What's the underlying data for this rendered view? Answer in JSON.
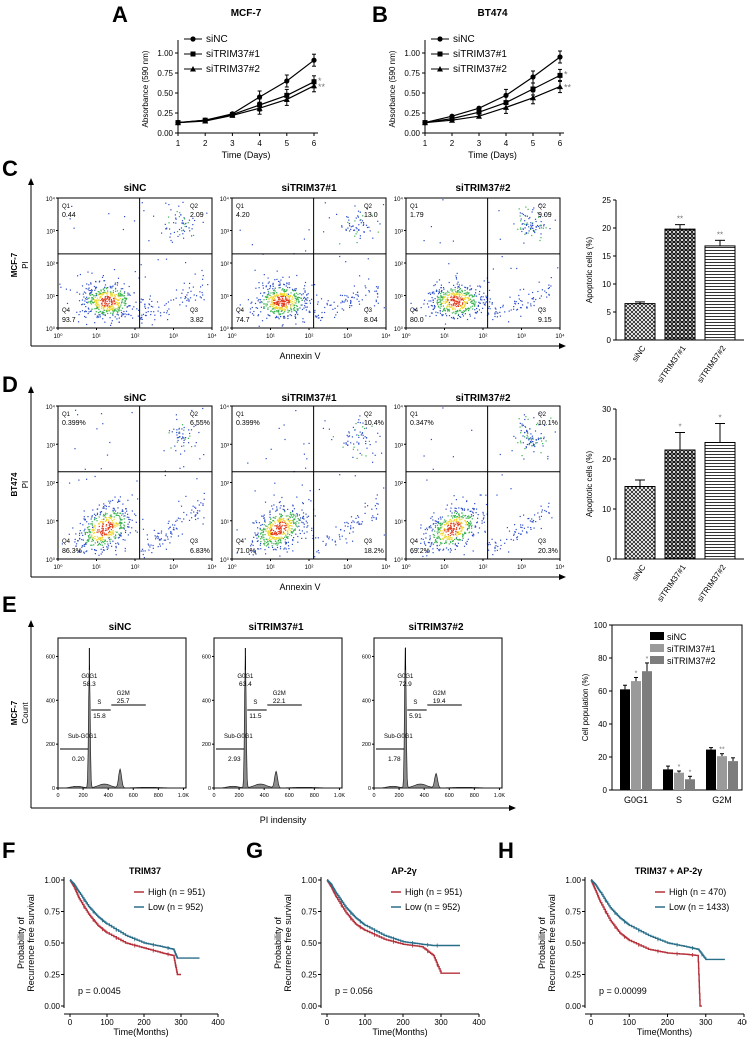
{
  "panels": {
    "A": "A",
    "B": "B",
    "C": "C",
    "D": "D",
    "E": "E",
    "F": "F",
    "G": "G",
    "H": "H"
  },
  "growth": {
    "xlabel": "Time (Days)",
    "ylabel": "Absorbance (590 nm)",
    "x_ticks": [
      "1",
      "2",
      "3",
      "4",
      "5",
      "6"
    ],
    "y_ticks": [
      "0.00",
      "0.25",
      "0.50",
      "0.75",
      "1.00"
    ],
    "legend": [
      "siNC",
      "siTRIM37#1",
      "siTRIM37#2"
    ],
    "sig_labels": [
      "*",
      "**"
    ]
  },
  "flow": {
    "titles": [
      "siNC",
      "siTRIM37#1",
      "siTRIM37#2"
    ],
    "xlabel": "Annexin V",
    "ylabel": "PI",
    "x_ticks": [
      "10⁰",
      "10¹",
      "10²",
      "10³",
      "10⁴"
    ],
    "y_ticks": [
      "10⁰",
      "10¹",
      "10²",
      "10³",
      "10⁴"
    ],
    "quad_names": [
      "Q1",
      "Q2",
      "Q3",
      "Q4"
    ],
    "mcf7": {
      "row_label": "MCF-7",
      "plots": [
        {
          "q1": "0.44",
          "q2": "2.09",
          "q3": "3.82",
          "q4": "93.7"
        },
        {
          "q1": "4.20",
          "q2": "13.0",
          "q3": "8.04",
          "q4": "74.7"
        },
        {
          "q1": "1.79",
          "q2": "9.09",
          "q3": "9.15",
          "q4": "80.0"
        }
      ]
    },
    "bt474": {
      "row_label": "BT474",
      "plots": [
        {
          "q1": "0.399%",
          "q2": "6.55%",
          "q3": "6.83%",
          "q4": "86.3%"
        },
        {
          "q1": "0.399%",
          "q2": "10.4%",
          "q3": "18.2%",
          "q4": "71.0%"
        },
        {
          "q1": "0.347%",
          "q2": "10.1%",
          "q3": "20.3%",
          "q4": "69.2%"
        }
      ]
    }
  },
  "apoptosis": {
    "ylabel": "Apoptotic cells (%)",
    "categories": [
      "siNC",
      "siTRIM37#1",
      "siTRIM37#2"
    ],
    "c_ticks": [
      "0",
      "5",
      "10",
      "15",
      "20",
      "25"
    ],
    "c_sig": [
      "**",
      "**"
    ],
    "d_ticks": [
      "0",
      "10",
      "20",
      "30"
    ],
    "d_sig": [
      "*",
      "*"
    ]
  },
  "cycle": {
    "titles": [
      "siNC",
      "siTRIM37#1",
      "siTRIM37#2"
    ],
    "row_label": "MCF-7",
    "ylabel": "Count",
    "xlabel": "PI indensity",
    "x_ticks": [
      "0",
      "200",
      "400",
      "600",
      "800",
      "1.0K"
    ],
    "y_ticks": [
      "0",
      "200",
      "400",
      "600"
    ],
    "phase_labels": [
      "G0G1",
      "S",
      "G2M",
      "Sub-G0G1"
    ],
    "plots": [
      {
        "g0g1": "58.3",
        "s": "15.8",
        "g2m": "25.7",
        "sub": "0.20"
      },
      {
        "g0g1": "63.4",
        "s": "11.5",
        "g2m": "22.1",
        "sub": "2.93"
      },
      {
        "g0g1": "72.9",
        "s": "5.91",
        "g2m": "19.4",
        "sub": "1.78"
      }
    ]
  },
  "population": {
    "ylabel": "Cell population (%)",
    "categories": [
      "G0G1",
      "S",
      "G2M"
    ],
    "y_ticks": [
      "0",
      "20",
      "40",
      "60",
      "80",
      "100"
    ],
    "legend": [
      "siNC",
      "siTRIM37#1",
      "siTRIM37#2"
    ],
    "sig": [
      "*",
      "*",
      "*",
      "*",
      "**"
    ]
  },
  "survival": {
    "ylabel_1": "Probability of",
    "ylabel_2": "Recurrence free survival",
    "xlabel": "Time(Months)",
    "x_ticks": [
      "0",
      "100",
      "200",
      "300",
      "400"
    ],
    "y_ticks": [
      "0.00",
      "0.25",
      "0.50",
      "0.75",
      "1.00"
    ],
    "plots": [
      {
        "title": "TRIM37",
        "high": "High (n = 951)",
        "low": "Low (n = 952)",
        "p": "p = 0.0045"
      },
      {
        "title": "AP-2γ",
        "high": "High (n = 951)",
        "low": "Low (n = 952)",
        "p": "p = 0.056"
      },
      {
        "title": "TRIM37 + AP-2γ",
        "high": "High (n = 470)",
        "low": "Low (n = 1433)",
        "p": "p = 0.00099"
      }
    ]
  },
  "colors": {
    "high": "#b5303a",
    "low": "#2a6f8a",
    "siNC": "#000000",
    "si1": "#9a9a9a",
    "si2": "#7d7d7d"
  },
  "chart_data": [
    {
      "type": "line",
      "panel": "A",
      "title": "MCF-7",
      "xlabel": "Time (Days)",
      "ylabel": "Absorbance (590 nm)",
      "ylim": [
        0,
        1.1
      ],
      "x": [
        1,
        2,
        3,
        4,
        5,
        6
      ],
      "series": [
        {
          "name": "siNC",
          "values": [
            0.13,
            0.16,
            0.24,
            0.45,
            0.65,
            0.91
          ]
        },
        {
          "name": "siTRIM37#1",
          "values": [
            0.13,
            0.16,
            0.23,
            0.35,
            0.47,
            0.64
          ]
        },
        {
          "name": "siTRIM37#2",
          "values": [
            0.13,
            0.15,
            0.22,
            0.31,
            0.42,
            0.59
          ]
        }
      ]
    },
    {
      "type": "line",
      "panel": "B",
      "title": "BT474",
      "xlabel": "Time (Days)",
      "ylabel": "Absorbance (590 nm)",
      "ylim": [
        0,
        1.1
      ],
      "x": [
        1,
        2,
        3,
        4,
        5,
        6
      ],
      "series": [
        {
          "name": "siNC",
          "values": [
            0.13,
            0.21,
            0.31,
            0.47,
            0.7,
            0.95
          ]
        },
        {
          "name": "siTRIM37#1",
          "values": [
            0.13,
            0.18,
            0.26,
            0.38,
            0.55,
            0.72
          ]
        },
        {
          "name": "siTRIM37#2",
          "values": [
            0.13,
            0.16,
            0.21,
            0.32,
            0.44,
            0.58
          ]
        }
      ]
    },
    {
      "type": "bar",
      "panel": "C",
      "ylabel": "Apoptotic cells (%)",
      "categories": [
        "siNC",
        "siTRIM37#1",
        "siTRIM37#2"
      ],
      "values": [
        6.5,
        19.8,
        16.8
      ],
      "ylim": [
        0,
        25
      ]
    },
    {
      "type": "bar",
      "panel": "D",
      "ylabel": "Apoptotic cells (%)",
      "categories": [
        "siNC",
        "siTRIM37#1",
        "siTRIM37#2"
      ],
      "values": [
        14.5,
        21.8,
        23.3
      ],
      "ylim": [
        0,
        30
      ]
    },
    {
      "type": "bar",
      "panel": "E",
      "ylabel": "Cell population (%)",
      "categories": [
        "G0G1",
        "S",
        "G2M"
      ],
      "ylim": [
        0,
        100
      ],
      "series": [
        {
          "name": "siNC",
          "values": [
            61,
            12.5,
            24.5
          ]
        },
        {
          "name": "siTRIM37#1",
          "values": [
            66,
            10.5,
            20.5
          ]
        },
        {
          "name": "siTRIM37#2",
          "values": [
            72,
            6.5,
            17.5
          ]
        }
      ]
    },
    {
      "type": "line",
      "panel": "F",
      "title": "TRIM37",
      "xlabel": "Time(Months)",
      "ylim": [
        0,
        1
      ],
      "series": [
        {
          "name": "High (n = 951)",
          "x": [
            0,
            10,
            25,
            50,
            75,
            100,
            150,
            200,
            250,
            280,
            290,
            300
          ],
          "values": [
            1.0,
            0.95,
            0.85,
            0.73,
            0.64,
            0.58,
            0.5,
            0.46,
            0.42,
            0.4,
            0.25,
            0.25
          ]
        },
        {
          "name": "Low (n = 952)",
          "x": [
            0,
            10,
            25,
            50,
            75,
            100,
            150,
            200,
            250,
            280,
            290,
            350
          ],
          "values": [
            1.0,
            0.97,
            0.9,
            0.79,
            0.71,
            0.65,
            0.56,
            0.5,
            0.47,
            0.45,
            0.38,
            0.38
          ]
        }
      ]
    },
    {
      "type": "line",
      "panel": "G",
      "title": "AP-2γ",
      "xlabel": "Time(Months)",
      "ylim": [
        0,
        1
      ],
      "series": [
        {
          "name": "High (n = 951)",
          "x": [
            0,
            10,
            25,
            50,
            75,
            100,
            150,
            200,
            250,
            280,
            300,
            350
          ],
          "values": [
            1.0,
            0.95,
            0.86,
            0.74,
            0.65,
            0.6,
            0.53,
            0.49,
            0.47,
            0.4,
            0.26,
            0.26
          ]
        },
        {
          "name": "Low (n = 952)",
          "x": [
            0,
            10,
            25,
            50,
            75,
            100,
            150,
            200,
            250,
            280,
            300,
            350
          ],
          "values": [
            1.0,
            0.97,
            0.89,
            0.78,
            0.7,
            0.64,
            0.56,
            0.51,
            0.49,
            0.48,
            0.48,
            0.48
          ]
        }
      ]
    },
    {
      "type": "line",
      "panel": "H",
      "title": "TRIM37 + AP-2γ",
      "xlabel": "Time(Months)",
      "ylim": [
        0,
        1
      ],
      "series": [
        {
          "name": "High (n = 470)",
          "x": [
            0,
            10,
            25,
            50,
            75,
            100,
            150,
            200,
            250,
            280,
            285,
            290
          ],
          "values": [
            1.0,
            0.93,
            0.82,
            0.68,
            0.58,
            0.52,
            0.45,
            0.42,
            0.41,
            0.4,
            0.0,
            0.0
          ]
        },
        {
          "name": "Low (n = 1433)",
          "x": [
            0,
            10,
            25,
            50,
            75,
            100,
            150,
            200,
            250,
            280,
            300,
            350
          ],
          "values": [
            1.0,
            0.97,
            0.9,
            0.78,
            0.7,
            0.64,
            0.56,
            0.5,
            0.47,
            0.45,
            0.37,
            0.37
          ]
        }
      ]
    }
  ]
}
